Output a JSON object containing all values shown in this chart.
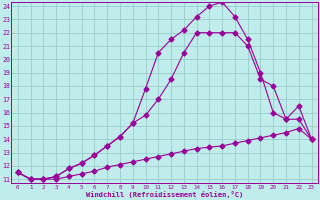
{
  "xlabel": "Windchill (Refroidissement éolien,°C)",
  "bg_color": "#c0ecec",
  "line_color": "#990099",
  "grid_color": "#99cccc",
  "xmin": -0.5,
  "xmax": 23.5,
  "ymin": 10.7,
  "ymax": 24.3,
  "line1_x": [
    0,
    1,
    2,
    3,
    4,
    5,
    6,
    7,
    8,
    9,
    10,
    11,
    12,
    13,
    14,
    15,
    16,
    17,
    18,
    19,
    20,
    21,
    22,
    23
  ],
  "line1_y": [
    11.5,
    11.0,
    11.0,
    11.0,
    11.2,
    11.4,
    11.6,
    11.9,
    12.1,
    12.3,
    12.5,
    12.7,
    12.9,
    13.1,
    13.3,
    13.4,
    13.5,
    13.7,
    13.9,
    14.1,
    14.3,
    14.5,
    14.8,
    14.0
  ],
  "line2_x": [
    0,
    1,
    2,
    3,
    4,
    5,
    6,
    7,
    8,
    9,
    10,
    11,
    12,
    13,
    14,
    15,
    16,
    17,
    18,
    19,
    20,
    21,
    22,
    23
  ],
  "line2_y": [
    11.5,
    11.0,
    11.0,
    11.2,
    11.8,
    12.2,
    12.8,
    13.5,
    14.2,
    15.2,
    17.8,
    20.5,
    21.5,
    22.2,
    23.2,
    24.0,
    24.3,
    23.2,
    21.5,
    19.0,
    16.0,
    15.5,
    16.5,
    14.0
  ],
  "line3_x": [
    0,
    1,
    2,
    3,
    4,
    5,
    6,
    7,
    8,
    9,
    10,
    11,
    12,
    13,
    14,
    15,
    16,
    17,
    18,
    19,
    20,
    21,
    22,
    23
  ],
  "line3_y": [
    11.5,
    11.0,
    11.0,
    11.2,
    11.8,
    12.2,
    12.8,
    13.5,
    14.2,
    15.2,
    15.8,
    17.0,
    18.5,
    20.5,
    22.0,
    22.0,
    22.0,
    22.0,
    21.0,
    18.5,
    18.0,
    15.5,
    15.5,
    14.0
  ],
  "xticks": [
    0,
    1,
    2,
    3,
    4,
    5,
    6,
    7,
    8,
    9,
    10,
    11,
    12,
    13,
    14,
    15,
    16,
    17,
    18,
    19,
    20,
    21,
    22,
    23
  ],
  "yticks": [
    11,
    12,
    13,
    14,
    15,
    16,
    17,
    18,
    19,
    20,
    21,
    22,
    23,
    24
  ]
}
